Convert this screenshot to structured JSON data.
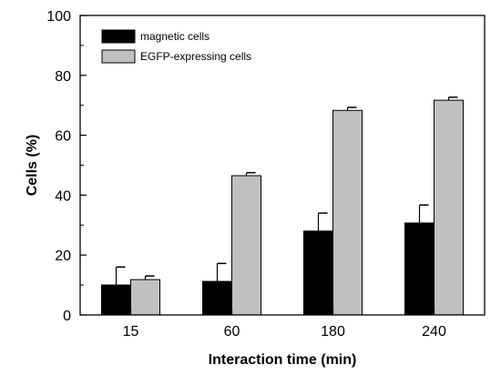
{
  "chart_data": {
    "type": "bar",
    "title": "",
    "xlabel": "Interaction time (min)",
    "ylabel": "Cells (%)",
    "ylim": [
      0,
      100
    ],
    "yticks": [
      0,
      20,
      40,
      60,
      80,
      100
    ],
    "categories": [
      "15",
      "60",
      "180",
      "240"
    ],
    "series": [
      {
        "name": "magnetic cells",
        "color": "#000000",
        "values": [
          10,
          11.2,
          28,
          30.7
        ],
        "errors": [
          6,
          6,
          6,
          6
        ]
      },
      {
        "name": "EGFP-expressing cells",
        "color": "#c0c0c0",
        "values": [
          11.8,
          46.5,
          68.3,
          71.7
        ],
        "errors": [
          1.2,
          1,
          1,
          1
        ]
      }
    ],
    "legend": {
      "position": "top-left"
    },
    "grid": false,
    "error_bars": "upper"
  }
}
